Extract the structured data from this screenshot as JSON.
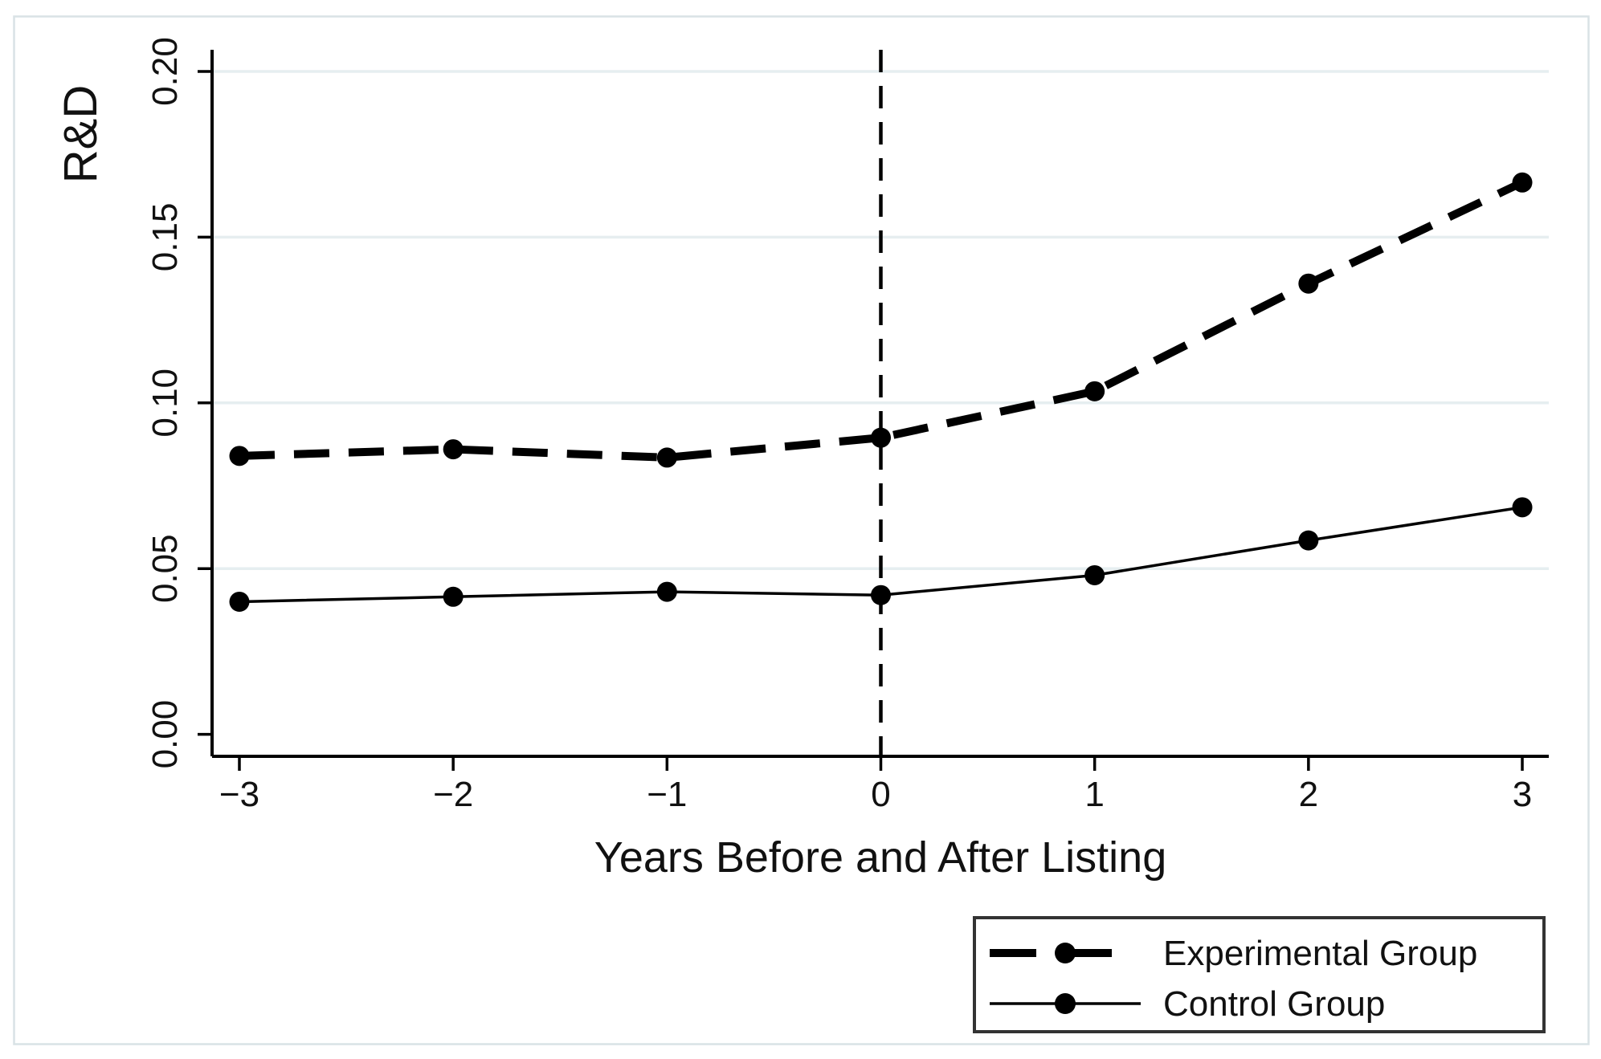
{
  "figure": {
    "background_color": "#ffffff",
    "border_color": "#d9e2e5",
    "grid_color": "#e6eef0",
    "axis_color": "#000000",
    "series_color": "#000000",
    "legend_border_color": "#333333"
  },
  "chart_data": {
    "type": "line",
    "title": "",
    "xlabel": "Years Before and After Listing",
    "ylabel": "R&D",
    "x": [
      -3,
      -2,
      -1,
      0,
      1,
      2,
      3
    ],
    "x_tick_labels": [
      "−3",
      "−2",
      "−1",
      "0",
      "1",
      "2",
      "3"
    ],
    "y_ticks": [
      0.0,
      0.05,
      0.1,
      0.15,
      0.2
    ],
    "y_tick_labels": [
      "0.00",
      "0.05",
      "0.10",
      "0.15",
      "0.20"
    ],
    "ylim": [
      0,
      0.205
    ],
    "grid": "horizontal-light",
    "reference_line_x": 0,
    "legend_position": "bottom-right",
    "series": [
      {
        "name": "Experimental Group",
        "line_style": "dashed",
        "marker": "filled-circle",
        "values": [
          0.084,
          0.086,
          0.0835,
          0.0895,
          0.1035,
          0.136,
          0.1665
        ]
      },
      {
        "name": "Control Group",
        "line_style": "solid",
        "marker": "filled-circle",
        "values": [
          0.04,
          0.0415,
          0.043,
          0.042,
          0.048,
          0.0585,
          0.0685
        ]
      }
    ]
  }
}
